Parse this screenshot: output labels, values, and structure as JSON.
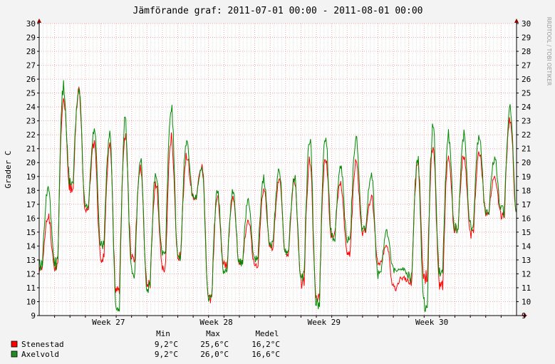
{
  "chart_data": {
    "type": "line",
    "title": "Jämförande graf: 2011-07-01 00:00 - 2011-08-01 00:00",
    "ylabel": "Grader C",
    "watermark": "RRDTOOL / TOBI OETIKER",
    "ylim": [
      9,
      30
    ],
    "yticks": [
      9,
      10,
      11,
      12,
      13,
      14,
      15,
      16,
      17,
      18,
      19,
      20,
      21,
      22,
      23,
      24,
      25,
      26,
      27,
      28,
      29,
      30
    ],
    "xlim": [
      "2011-07-01 00:00",
      "2011-08-01 00:00"
    ],
    "xticks": [
      {
        "label": "Week 27",
        "date": "2011-07-05 12:00"
      },
      {
        "label": "Week 28",
        "date": "2011-07-12 12:00"
      },
      {
        "label": "Week 29",
        "date": "2011-07-19 12:00"
      },
      {
        "label": "Week 30",
        "date": "2011-07-26 12:00"
      }
    ],
    "grid": true,
    "series": [
      {
        "name": "Stenestad",
        "color": "#ff0000",
        "x_dates": [
          "2011-07-01",
          "2011-07-02",
          "2011-07-03",
          "2011-07-04",
          "2011-07-05",
          "2011-07-06",
          "2011-07-07",
          "2011-07-08",
          "2011-07-09",
          "2011-07-10",
          "2011-07-11",
          "2011-07-12",
          "2011-07-13",
          "2011-07-14",
          "2011-07-15",
          "2011-07-16",
          "2011-07-17",
          "2011-07-18",
          "2011-07-19",
          "2011-07-20",
          "2011-07-21",
          "2011-07-22",
          "2011-07-23",
          "2011-07-24",
          "2011-07-25",
          "2011-07-26",
          "2011-07-27",
          "2011-07-28",
          "2011-07-29",
          "2011-07-30",
          "2011-07-31"
        ],
        "lows": [
          12.5,
          12.5,
          18.2,
          16.5,
          13.0,
          10.6,
          13.0,
          11.2,
          12.5,
          13.3,
          17.5,
          10.2,
          12.5,
          12.8,
          12.5,
          14.0,
          13.5,
          11.5,
          10.2,
          14.8,
          13.5,
          15.0,
          12.8,
          11.0,
          11.5,
          11.8,
          11.2,
          15.2,
          15.0,
          16.5,
          16.2
        ],
        "highs": [
          16.2,
          24.5,
          25.1,
          21.4,
          21.2,
          22.0,
          19.5,
          18.5,
          21.8,
          20.5,
          19.8,
          17.5,
          17.5,
          15.9,
          18.0,
          18.8,
          18.8,
          20.2,
          20.5,
          18.5,
          20.0,
          17.5,
          14.0,
          11.7,
          20.0,
          21.3,
          20.5,
          20.5,
          20.8,
          19.0,
          23.2
        ]
      },
      {
        "name": "Axelvold",
        "color": "#008800",
        "x_dates": [
          "2011-07-01",
          "2011-07-02",
          "2011-07-03",
          "2011-07-04",
          "2011-07-05",
          "2011-07-06",
          "2011-07-07",
          "2011-07-08",
          "2011-07-09",
          "2011-07-10",
          "2011-07-11",
          "2011-07-12",
          "2011-07-13",
          "2011-07-14",
          "2011-07-15",
          "2011-07-16",
          "2011-07-17",
          "2011-07-18",
          "2011-07-19",
          "2011-07-20",
          "2011-07-21",
          "2011-07-22",
          "2011-07-23",
          "2011-07-24",
          "2011-07-25",
          "2011-07-26",
          "2011-07-27",
          "2011-07-28",
          "2011-07-29",
          "2011-07-30",
          "2011-07-31"
        ],
        "lows": [
          12.7,
          12.8,
          18.5,
          16.7,
          14.0,
          9.6,
          12.0,
          11.0,
          13.4,
          13.4,
          17.5,
          10.2,
          12.0,
          12.8,
          13.0,
          14.2,
          13.5,
          11.8,
          9.9,
          14.6,
          14.5,
          15.2,
          11.9,
          12.3,
          11.8,
          9.8,
          12.0,
          15.2,
          15.5,
          16.5,
          16.5
        ],
        "highs": [
          18.2,
          25.4,
          25.2,
          22.4,
          21.9,
          22.9,
          20.2,
          19.3,
          24.0,
          21.7,
          19.5,
          17.8,
          18.0,
          17.2,
          18.9,
          19.6,
          19.0,
          21.7,
          22.0,
          19.7,
          21.7,
          19.2,
          15.0,
          12.4,
          20.3,
          22.7,
          22.0,
          22.0,
          22.0,
          20.3,
          24.0
        ]
      }
    ],
    "legend": {
      "placement": "bottom-left",
      "headers": [
        "Min",
        "Max",
        "Medel"
      ],
      "rows": [
        {
          "name": "Stenestad",
          "color": "#ff0000",
          "min": "9,2°C",
          "max": "25,6°C",
          "mean": "16,2°C"
        },
        {
          "name": "Axelvold",
          "color": "#228b22",
          "min": "9,2°C",
          "max": "26,0°C",
          "mean": "16,6°C"
        }
      ]
    }
  }
}
